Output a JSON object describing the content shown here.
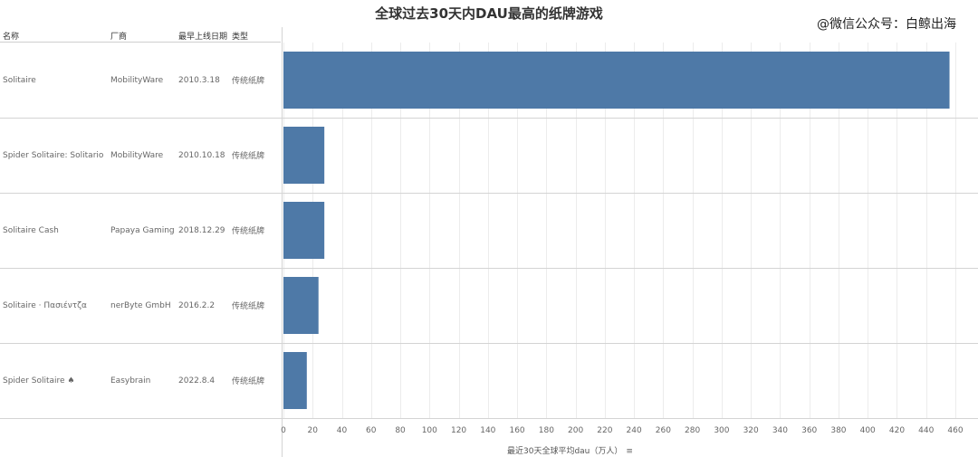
{
  "page": {
    "title": "全球过去30天内DAU最高的纸牌游戏",
    "watermark": "@微信公众号：白鲸出海"
  },
  "table": {
    "headers": {
      "name": "名称",
      "vendor": "厂商",
      "date": "最早上线日期",
      "type": "类型"
    },
    "rows": [
      {
        "name": "Solitaire",
        "vendor": "MobilityWare",
        "date": "2010.3.18",
        "type": "传统纸牌"
      },
      {
        "name": "Spider Solitaire: Solitario",
        "vendor": "MobilityWare",
        "date": "2010.10.18",
        "type": "传统纸牌"
      },
      {
        "name": "Solitaire Cash",
        "vendor": "Papaya Gaming",
        "date": "2018.12.29",
        "type": "传统纸牌"
      },
      {
        "name": "Solitaire · Πασιέντζα",
        "vendor": "nerByte GmbH",
        "date": "2016.2.2",
        "type": "传统纸牌"
      },
      {
        "name": "Spider Solitaire ♠",
        "vendor": "Easybrain",
        "date": "2022.8.4",
        "type": "传统纸牌"
      }
    ]
  },
  "chart_data": {
    "type": "bar",
    "orientation": "horizontal",
    "title": "全球过去30天内DAU最高的纸牌游戏",
    "xlabel": "最近30天全球平均dau（万人）",
    "categories": [
      "Solitaire",
      "Spider Solitaire: Solitario",
      "Solitaire Cash",
      "Solitaire · Πασιέντζα",
      "Spider Solitaire ♠"
    ],
    "values": [
      456,
      28,
      28,
      24,
      16
    ],
    "xlim": [
      0,
      460
    ],
    "ticks": [
      0,
      20,
      40,
      60,
      80,
      100,
      120,
      140,
      160,
      180,
      200,
      220,
      240,
      260,
      280,
      300,
      320,
      340,
      360,
      380,
      400,
      420,
      440,
      460
    ],
    "grid": true,
    "color": "#4e79a7"
  },
  "icons": {
    "sort": "sort-descending-icon"
  }
}
